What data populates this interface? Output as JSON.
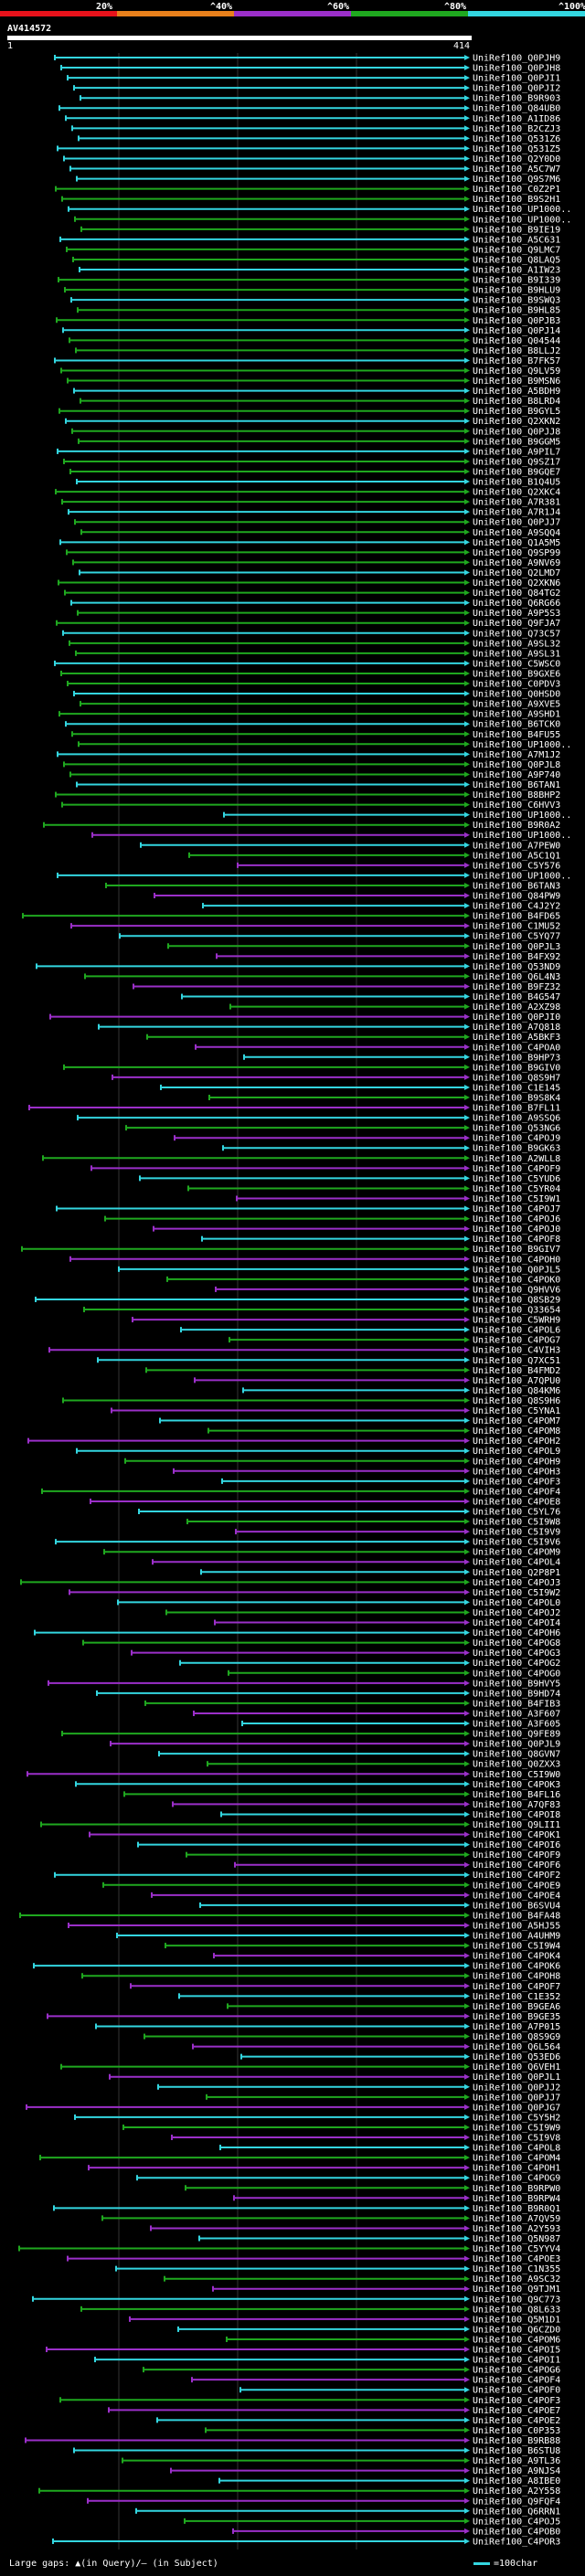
{
  "chart_data": {
    "type": "alignment-overview",
    "query_id": "AV414572",
    "query_start": "1",
    "query_end": "414",
    "legend": [
      {
        "label": "20%",
        "color": "#e8121b"
      },
      {
        "label": "^40%",
        "color": "#e8801b"
      },
      {
        "label": "^60%",
        "color": "#9b2fc9"
      },
      {
        "label": "^80%",
        "color": "#1fa81f"
      },
      {
        "label": "^100%",
        "color": "#33d6e0"
      }
    ],
    "footer_left": "Large gaps: ▲(in Query)/— (in Subject)",
    "footer_right": "=100char",
    "hits": [
      "UniRef100_Q0PJH9",
      "UniRef100_Q0PJH8",
      "UniRef100_Q0PJI1",
      "UniRef100_Q0PJI2",
      "UniRef100_B9R903",
      "UniRef100_Q84UB0",
      "UniRef100_A1ID86",
      "UniRef100_B2CZJ3",
      "UniRef100_Q531Z6",
      "UniRef100_Q531Z5",
      "UniRef100_Q2Y0D0",
      "UniRef100_A5C7W7",
      "UniRef100_Q9S7M6",
      "UniRef100_C0Z2P1",
      "UniRef100_B9S2H1",
      "UniRef100_UP1000..",
      "UniRef100_UP1000..",
      "UniRef100_B9IE19",
      "UniRef100_A5C631",
      "UniRef100_Q9LMC7",
      "UniRef100_Q8LAQ5",
      "UniRef100_A1IW23",
      "UniRef100_B9I339",
      "UniRef100_B9HLU9",
      "UniRef100_B9SWQ3",
      "UniRef100_B9HL85",
      "UniRef100_Q0PJB3",
      "UniRef100_Q0PJ14",
      "UniRef100_Q04544",
      "UniRef100_B8LLJ2",
      "UniRef100_B7FK57",
      "UniRef100_Q9LV59",
      "UniRef100_B9MSN6",
      "UniRef100_A5BDH9",
      "UniRef100_B8LRD4",
      "UniRef100_B9GYL5",
      "UniRef100_Q2XKN2",
      "UniRef100_Q0PJJ8",
      "UniRef100_B9GGM5",
      "UniRef100_A9PIL7",
      "UniRef100_Q9SZ17",
      "UniRef100_B9GQE7",
      "UniRef100_B1Q4U5",
      "UniRef100_Q2XKC4",
      "UniRef100_A7R381",
      "UniRef100_A7R1J4",
      "UniRef100_Q0PJJ7",
      "UniRef100_A9SQQ4",
      "UniRef100_Q1A5M5",
      "UniRef100_Q9SP99",
      "UniRef100_A9NV69",
      "UniRef100_Q2LMD7",
      "UniRef100_Q2XKN6",
      "UniRef100_Q84TG2",
      "UniRef100_Q6RG66",
      "UniRef100_A9P5S3",
      "UniRef100_Q9FJA7",
      "UniRef100_Q73C57",
      "UniRef100_A9SL32",
      "UniRef100_A9SL31",
      "UniRef100_C5WSC0",
      "UniRef100_B9GXE6",
      "UniRef100_C0PDV3",
      "UniRef100_Q0HSD0",
      "UniRef100_A9XVE5",
      "UniRef100_A9SHD1",
      "UniRef100_B6TCK0",
      "UniRef100_B4FU55",
      "UniRef100_UP1000..",
      "UniRef100_A7M1J2",
      "UniRef100_Q0PJL8",
      "UniRef100_A9P740",
      "UniRef100_B6TAN1",
      "UniRef100_B8BHP2",
      "UniRef100_C6HVV3",
      "UniRef100_UP1000..",
      "UniRef100_B9R0A2",
      "UniRef100_UP1000..",
      "UniRef100_A7PEW0",
      "UniRef100_A5C1Q1",
      "UniRef100_C5Y576",
      "UniRef100_UP1000..",
      "UniRef100_B6TAN3",
      "UniRef100_Q84PW9",
      "UniRef100_C4J2Y2",
      "UniRef100_B4FD65",
      "UniRef100_C1MU52",
      "UniRef100_C5YQ77",
      "UniRef100_Q0PJL3",
      "UniRef100_B4FX92",
      "UniRef100_Q53ND9",
      "UniRef100_Q6L4N3",
      "UniRef100_B9FZ32",
      "UniRef100_B4G547",
      "UniRef100_A2XZ98",
      "UniRef100_Q0PJI0",
      "UniRef100_A7Q818",
      "UniRef100_A5BKF3",
      "UniRef100_C4POA0",
      "UniRef100_B9HP73",
      "UniRef100_B9GIV0",
      "UniRef100_Q8S9H7",
      "UniRef100_C1E145",
      "UniRef100_B9S8K4",
      "UniRef100_B7FL11",
      "UniRef100_A9SSQ6",
      "UniRef100_Q53NG6",
      "UniRef100_C4POJ9",
      "UniRef100_B9GK63",
      "UniRef100_A2WLL8",
      "UniRef100_C4POF9",
      "UniRef100_C5YUD6",
      "UniRef100_C5YR04",
      "UniRef100_C5I9W1",
      "UniRef100_C4POJ7",
      "UniRef100_C4POJ6",
      "UniRef100_C4POJ0",
      "UniRef100_C4POF8",
      "UniRef100_B9GIV7",
      "UniRef100_C4POH0",
      "UniRef100_Q0PJL5",
      "UniRef100_C4POK0",
      "UniRef100_Q9HVV6",
      "UniRef100_Q8SB29",
      "UniRef100_Q33654",
      "UniRef100_C5WRH9",
      "UniRef100_C4POL6",
      "UniRef100_C4POG7",
      "UniRef100_C4VIH3",
      "UniRef100_Q7XC51",
      "UniRef100_B4FMD2",
      "UniRef100_A7QPU0",
      "UniRef100_Q84KM6",
      "UniRef100_Q8S9H6",
      "UniRef100_C5YNA1",
      "UniRef100_C4POM7",
      "UniRef100_C4POM8",
      "UniRef100_C4POH2",
      "UniRef100_C4POL9",
      "UniRef100_C4POH9",
      "UniRef100_C4POH3",
      "UniRef100_C4POF3",
      "UniRef100_C4POF4",
      "UniRef100_C4POE8",
      "UniRef100_C5YL76",
      "UniRef100_C5I9W8",
      "UniRef100_C5I9V9",
      "UniRef100_C5I9V6",
      "UniRef100_C4POM9",
      "UniRef100_C4POL4",
      "UniRef100_Q2P8P1",
      "UniRef100_C4POJ3",
      "UniRef100_C5I9W2",
      "UniRef100_C4POL0",
      "UniRef100_C4POJ2",
      "UniRef100_C4POI4",
      "UniRef100_C4POH6",
      "UniRef100_C4POG8",
      "UniRef100_C4POG3",
      "UniRef100_C4POG2",
      "UniRef100_C4POG0",
      "UniRef100_B9HVY5",
      "UniRef100_B9HD74",
      "UniRef100_B4FIB3",
      "UniRef100_A3F607",
      "UniRef100_A3F605",
      "UniRef100_Q9FE89",
      "UniRef100_Q0PJL9",
      "UniRef100_Q8GVN7",
      "UniRef100_Q0ZXX3",
      "UniRef100_C5I9W0",
      "UniRef100_C4POK3",
      "UniRef100_B4FL16",
      "UniRef100_A7QF83",
      "UniRef100_C4POI8",
      "UniRef100_Q9LII1",
      "UniRef100_C4POK1",
      "UniRef100_C4POI6",
      "UniRef100_C4POF9",
      "UniRef100_C4POF6",
      "UniRef100_C4POF2",
      "UniRef100_C4POE9",
      "UniRef100_C4POE4",
      "UniRef100_B6SVU4",
      "UniRef100_B4FA48",
      "UniRef100_A5HJ55",
      "UniRef100_A4UHM9",
      "UniRef100_C5I9W4",
      "UniRef100_C4POK4",
      "UniRef100_C4POK6",
      "UniRef100_C4POH8",
      "UniRef100_C4POF7",
      "UniRef100_C1E352",
      "UniRef100_B9GEA6",
      "UniRef100_B9GE35",
      "UniRef100_A7P015",
      "UniRef100_Q8S9G9",
      "UniRef100_Q6L564",
      "UniRef100_Q53ED6",
      "UniRef100_Q6VEH1",
      "UniRef100_Q0PJL1",
      "UniRef100_Q0PJJ2",
      "UniRef100_Q0PJJ7",
      "UniRef100_Q0PJG7",
      "UniRef100_C5Y5H2",
      "UniRef100_C5I9W9",
      "UniRef100_C5I9V8",
      "UniRef100_C4POL8",
      "UniRef100_C4POM4",
      "UniRef100_C4POH1",
      "UniRef100_C4POG9",
      "UniRef100_B9RPW0",
      "UniRef100_B9RPW4",
      "UniRef100_B9R0Q1",
      "UniRef100_A7QV59",
      "UniRef100_A2Y593",
      "UniRef100_Q5N987",
      "UniRef100_C5YYV4",
      "UniRef100_C4POE3",
      "UniRef100_C1N355",
      "UniRef100_A9SC32",
      "UniRef100_Q9TJM1",
      "UniRef100_Q9C773",
      "UniRef100_Q8L633",
      "UniRef100_Q5M1D1",
      "UniRef100_Q6CZD0",
      "UniRef100_C4POM6",
      "UniRef100_C4POI5",
      "UniRef100_C4POI1",
      "UniRef100_C4POG6",
      "UniRef100_C4POF4",
      "UniRef100_C4POF0",
      "UniRef100_C4POF3",
      "UniRef100_C4POE7",
      "UniRef100_C4POE2",
      "UniRef100_C0P353",
      "UniRef100_B9RB88",
      "UniRef100_B6STU8",
      "UniRef100_A9TL36",
      "UniRef100_A9NJS4",
      "UniRef100_A8IBE0",
      "UniRef100_A2Y558",
      "UniRef100_Q9FQF4",
      "UniRef100_Q6RRN1",
      "UniRef100_C4POJ5",
      "UniRef100_C4POB0",
      "UniRef100_C4POR3"
    ]
  }
}
